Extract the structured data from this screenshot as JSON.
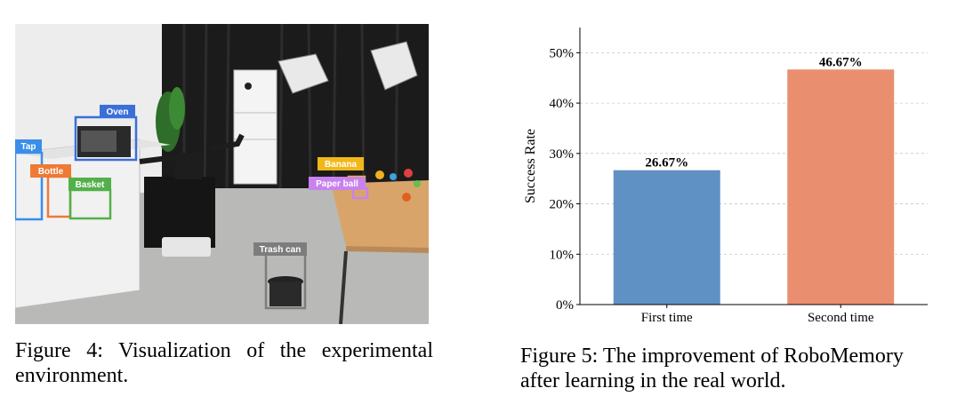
{
  "figure4": {
    "caption_prefix": "Figure 4:",
    "caption_text": "Visualization of the experimental environment.",
    "labels": [
      {
        "text": "Oven",
        "color": "#3a6fd8"
      },
      {
        "text": "Tap",
        "color": "#3a8ee8"
      },
      {
        "text": "Bottle",
        "color": "#ee7a36"
      },
      {
        "text": "Basket",
        "color": "#52b04a"
      },
      {
        "text": "Banana",
        "color": "#f2b81a"
      },
      {
        "text": "Paper ball",
        "color": "#c882ee"
      },
      {
        "text": "Trash can",
        "color": "#7d7d7d"
      }
    ]
  },
  "figure5": {
    "caption_prefix": "Figure 5:",
    "caption_text": "The improvement of RoboMemory after learning in the real world."
  },
  "chart_data": {
    "type": "bar",
    "categories": [
      "First time",
      "Second time"
    ],
    "values": [
      26.67,
      46.67
    ],
    "value_labels": [
      "26.67%",
      "46.67%"
    ],
    "ylabel": "Success Rate",
    "ylim": [
      0,
      55
    ],
    "yticks": [
      0,
      10,
      20,
      30,
      40,
      50
    ],
    "ytick_labels": [
      "0%",
      "10%",
      "20%",
      "30%",
      "40%",
      "50%"
    ],
    "grid": "horizontal dashed",
    "colors": [
      "#6091c5",
      "#e98f6f"
    ]
  }
}
